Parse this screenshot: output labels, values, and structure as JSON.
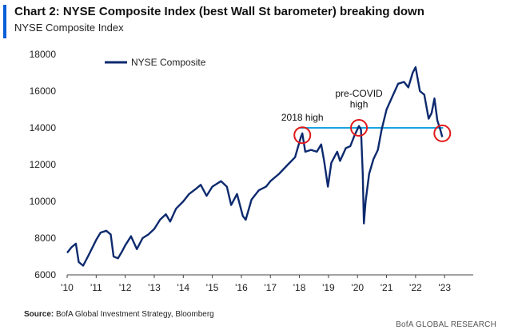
{
  "header": {
    "title": "Chart 2: NYSE Composite Index (best Wall St barometer) breaking down",
    "subtitle": "NYSE Composite Index"
  },
  "footer": {
    "source_label": "Source:",
    "source_text": "BofA Global Investment Strategy, Bloomberg",
    "brand": "BofA GLOBAL RESEARCH"
  },
  "colors": {
    "series": "#0d2a6e",
    "level_line": "#1aa3e0",
    "circle": "#e01919",
    "accent": "#0a5fd6"
  },
  "chart_data": {
    "type": "line",
    "title": "Chart 2: NYSE Composite Index (best Wall St barometer) breaking down",
    "subtitle": "NYSE Composite Index",
    "xlabel": "",
    "ylabel": "",
    "x_ticks": [
      "'10",
      "'11",
      "'12",
      "'13",
      "'14",
      "'15",
      "'16",
      "'17",
      "'18",
      "'19",
      "'20",
      "'21",
      "'22",
      "'23"
    ],
    "y_ticks": [
      6000,
      8000,
      10000,
      12000,
      14000,
      16000,
      18000
    ],
    "xlim": [
      2010.0,
      2023.6
    ],
    "ylim": [
      6000,
      18000
    ],
    "grid": false,
    "legend_position": "top-left",
    "series": [
      {
        "name": "NYSE Composite",
        "points": [
          [
            2010.0,
            7200
          ],
          [
            2010.15,
            7500
          ],
          [
            2010.3,
            7700
          ],
          [
            2010.4,
            6700
          ],
          [
            2010.55,
            6500
          ],
          [
            2010.75,
            7100
          ],
          [
            2011.0,
            7900
          ],
          [
            2011.15,
            8300
          ],
          [
            2011.35,
            8400
          ],
          [
            2011.5,
            8200
          ],
          [
            2011.6,
            7000
          ],
          [
            2011.75,
            6900
          ],
          [
            2011.9,
            7300
          ],
          [
            2012.0,
            7600
          ],
          [
            2012.2,
            8100
          ],
          [
            2012.4,
            7400
          ],
          [
            2012.6,
            8000
          ],
          [
            2012.8,
            8200
          ],
          [
            2013.0,
            8500
          ],
          [
            2013.2,
            9000
          ],
          [
            2013.4,
            9300
          ],
          [
            2013.55,
            8900
          ],
          [
            2013.75,
            9600
          ],
          [
            2014.0,
            10000
          ],
          [
            2014.2,
            10400
          ],
          [
            2014.45,
            10700
          ],
          [
            2014.6,
            10900
          ],
          [
            2014.8,
            10300
          ],
          [
            2015.0,
            10800
          ],
          [
            2015.3,
            11100
          ],
          [
            2015.5,
            10800
          ],
          [
            2015.65,
            9800
          ],
          [
            2015.85,
            10400
          ],
          [
            2016.05,
            9200
          ],
          [
            2016.15,
            9000
          ],
          [
            2016.35,
            10100
          ],
          [
            2016.6,
            10600
          ],
          [
            2016.85,
            10800
          ],
          [
            2017.0,
            11100
          ],
          [
            2017.3,
            11500
          ],
          [
            2017.6,
            12000
          ],
          [
            2017.85,
            12400
          ],
          [
            2018.05,
            13500
          ],
          [
            2018.1,
            13700
          ],
          [
            2018.2,
            12700
          ],
          [
            2018.4,
            12800
          ],
          [
            2018.6,
            12700
          ],
          [
            2018.75,
            13100
          ],
          [
            2018.85,
            12200
          ],
          [
            2018.98,
            10800
          ],
          [
            2019.1,
            12100
          ],
          [
            2019.3,
            12700
          ],
          [
            2019.4,
            12200
          ],
          [
            2019.6,
            12900
          ],
          [
            2019.75,
            13000
          ],
          [
            2019.9,
            13600
          ],
          [
            2020.05,
            14100
          ],
          [
            2020.12,
            13900
          ],
          [
            2020.18,
            11500
          ],
          [
            2020.22,
            8800
          ],
          [
            2020.28,
            10000
          ],
          [
            2020.4,
            11500
          ],
          [
            2020.55,
            12300
          ],
          [
            2020.7,
            12800
          ],
          [
            2020.83,
            13900
          ],
          [
            2021.0,
            15000
          ],
          [
            2021.2,
            15700
          ],
          [
            2021.4,
            16400
          ],
          [
            2021.6,
            16500
          ],
          [
            2021.75,
            16200
          ],
          [
            2021.9,
            17000
          ],
          [
            2022.0,
            17300
          ],
          [
            2022.15,
            16000
          ],
          [
            2022.3,
            15800
          ],
          [
            2022.45,
            14500
          ],
          [
            2022.55,
            14800
          ],
          [
            2022.65,
            15600
          ],
          [
            2022.75,
            14400
          ],
          [
            2022.85,
            13900
          ],
          [
            2022.92,
            13500
          ]
        ]
      }
    ],
    "reference_line": {
      "y": 14000,
      "x_start": 2018.0,
      "x_end": 2022.95
    },
    "highlight_circles": [
      {
        "x": 2018.1,
        "y": 13600
      },
      {
        "x": 2020.05,
        "y": 14000
      },
      {
        "x": 2022.92,
        "y": 13700
      }
    ],
    "annotations": [
      {
        "text": "2018 high",
        "x": 2018.1,
        "y": 14400
      },
      {
        "text": "pre-COVID",
        "x": 2020.05,
        "y": 15700
      },
      {
        "text": "high",
        "x": 2020.05,
        "y": 15100
      }
    ]
  }
}
